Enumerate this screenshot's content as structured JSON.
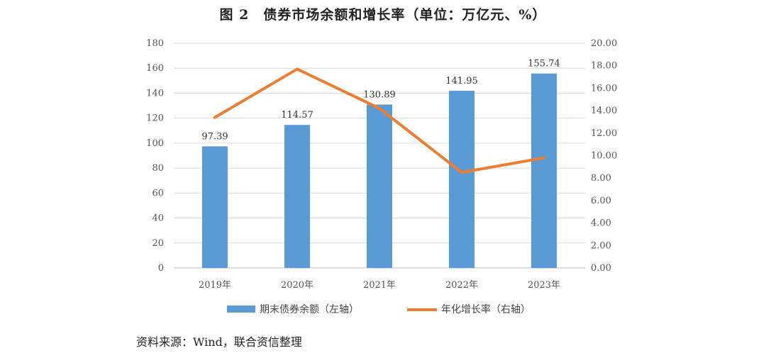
{
  "title": "图 2　债券市场余额和增长率（单位：万亿元、%）",
  "source": "资料来源：Wind，联合资信整理",
  "colors": {
    "bar": "#5B9BD5",
    "line": "#ED7D31",
    "grid": "#D9D9D9",
    "axis": "#BFBFBF"
  },
  "chart_data": {
    "type": "bar",
    "categories": [
      "2019年",
      "2020年",
      "2021年",
      "2022年",
      "2023年"
    ],
    "series": [
      {
        "name": "期末债券余额（左轴）",
        "type": "bar",
        "axis": "left",
        "values": [
          97.39,
          114.57,
          130.89,
          141.95,
          155.74
        ],
        "labels": [
          "97.39",
          "114.57",
          "130.89",
          "141.95",
          "155.74"
        ]
      },
      {
        "name": "年化增长率（右轴）",
        "type": "line",
        "axis": "right",
        "values": [
          13.4,
          17.7,
          14.2,
          8.5,
          9.8
        ]
      }
    ],
    "left_axis": {
      "min": 0,
      "max": 180,
      "step": 20,
      "ticks": [
        "0",
        "20",
        "40",
        "60",
        "80",
        "100",
        "120",
        "140",
        "160",
        "180"
      ]
    },
    "right_axis": {
      "min": 0,
      "max": 20,
      "step": 2,
      "ticks": [
        "0.00",
        "2.00",
        "4.00",
        "6.00",
        "8.00",
        "10.00",
        "12.00",
        "14.00",
        "16.00",
        "18.00",
        "20.00"
      ]
    },
    "grid": true,
    "legend_position": "bottom"
  }
}
